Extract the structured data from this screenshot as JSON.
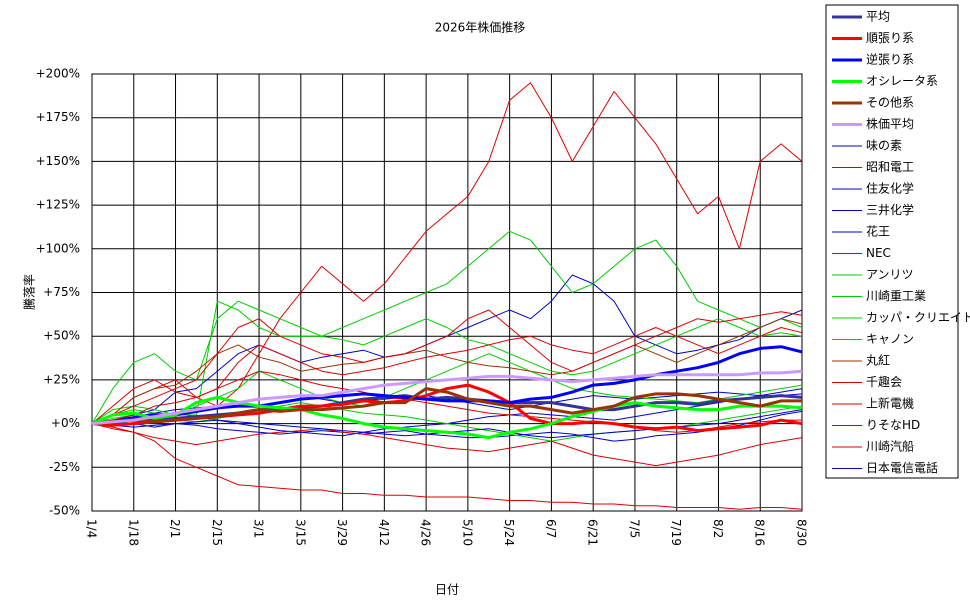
{
  "chart_data": {
    "type": "line",
    "title": "2026年株価推移",
    "x_label": "日付",
    "y_label": "騰落率",
    "categories": [
      "1/4",
      null,
      "1/18",
      null,
      "2/1",
      null,
      "2/15",
      null,
      "3/1",
      null,
      "3/15",
      null,
      "3/29",
      null,
      "4/12",
      null,
      "4/26",
      null,
      "5/10",
      null,
      "5/24",
      null,
      "6/7",
      null,
      "6/21",
      null,
      "7/5",
      null,
      "7/19",
      null,
      "8/2",
      null,
      "8/16",
      null,
      "8/30"
    ],
    "ylim": [
      -50,
      200
    ],
    "yticks": [
      {
        "value": -50,
        "label": "-50%"
      },
      {
        "value": -25,
        "label": "-25%"
      },
      {
        "value": 0,
        "label": "+0%"
      },
      {
        "value": 25,
        "label": "+25%"
      },
      {
        "value": 50,
        "label": "+50%"
      },
      {
        "value": 75,
        "label": "+75%"
      },
      {
        "value": 100,
        "label": "+100%"
      },
      {
        "value": 125,
        "label": "+125%"
      },
      {
        "value": 150,
        "label": "+150%"
      },
      {
        "value": 175,
        "label": "+175%"
      },
      {
        "value": 200,
        "label": "+200%"
      }
    ],
    "grid": true,
    "legend": "right",
    "series": [
      {
        "name": "平均",
        "color": "#333399",
        "line_width": 3,
        "values": [
          0,
          1,
          2,
          2,
          3,
          4,
          5,
          6,
          8,
          8,
          9,
          10,
          12,
          14,
          15,
          16,
          14,
          15,
          14,
          13,
          12,
          12,
          12,
          10,
          8,
          8,
          10,
          12,
          12,
          11,
          13,
          14,
          15,
          16,
          15
        ]
      },
      {
        "name": "順張り系",
        "color": "#ff0000",
        "line_width": 3,
        "values": [
          0,
          -1,
          0,
          1,
          2,
          3,
          4,
          5,
          6,
          8,
          10,
          10,
          11,
          13,
          12,
          13,
          16,
          20,
          22,
          18,
          12,
          3,
          0,
          0,
          1,
          0,
          -2,
          -3,
          -2,
          -4,
          -3,
          -2,
          -1,
          2,
          0
        ]
      },
      {
        "name": "逆張り系",
        "color": "#0000ff",
        "line_width": 3,
        "values": [
          0,
          1,
          3,
          5,
          5,
          7,
          9,
          10,
          10,
          12,
          14,
          15,
          16,
          17,
          16,
          15,
          14,
          13,
          13,
          13,
          12,
          14,
          15,
          18,
          22,
          23,
          25,
          28,
          30,
          32,
          35,
          40,
          43,
          44,
          41
        ]
      },
      {
        "name": "オシレータ系",
        "color": "#00ff00",
        "line_width": 3,
        "values": [
          0,
          5,
          6,
          3,
          5,
          12,
          15,
          12,
          10,
          9,
          8,
          5,
          3,
          0,
          -2,
          -3,
          -4,
          -5,
          -6,
          -8,
          -5,
          -3,
          0,
          4,
          7,
          10,
          12,
          10,
          9,
          8,
          8,
          10,
          10,
          10,
          9
        ]
      },
      {
        "name": "その他系",
        "color": "#993300",
        "line_width": 3,
        "values": [
          0,
          1,
          2,
          1,
          2,
          3,
          4,
          6,
          8,
          7,
          8,
          8,
          9,
          10,
          12,
          12,
          20,
          18,
          14,
          12,
          10,
          10,
          8,
          6,
          8,
          10,
          15,
          17,
          17,
          16,
          14,
          12,
          10,
          13,
          13
        ]
      },
      {
        "name": "株価平均",
        "color": "#cc99ff",
        "line_width": 3,
        "values": [
          0,
          1,
          2,
          4,
          6,
          8,
          10,
          12,
          14,
          15,
          16,
          16,
          18,
          20,
          22,
          23,
          24,
          25,
          26,
          27,
          27,
          26,
          25,
          24,
          25,
          26,
          27,
          28,
          28,
          28,
          28,
          28,
          29,
          29,
          30
        ]
      },
      {
        "name": "味の素",
        "color": "#0000cc",
        "line_width": 1,
        "values": [
          0,
          2,
          4,
          6,
          8,
          9,
          10,
          12,
          14,
          15,
          16,
          14,
          12,
          13,
          14,
          15,
          16,
          14,
          12,
          10,
          8,
          10,
          12,
          14,
          16,
          15,
          14,
          15,
          16,
          17,
          18,
          17,
          16,
          16,
          17
        ]
      },
      {
        "name": "昭和電工",
        "color": "#dd0000",
        "line_width": 1,
        "values": [
          0,
          5,
          15,
          20,
          25,
          15,
          10,
          20,
          40,
          60,
          75,
          90,
          80,
          70,
          80,
          95,
          110,
          120,
          130,
          150,
          185,
          195,
          175,
          150,
          170,
          190,
          175,
          160,
          140,
          120,
          130,
          100,
          150,
          160,
          150
        ]
      },
      {
        "name": "住友化学",
        "color": "#0000cc",
        "line_width": 1,
        "values": [
          0,
          2,
          5,
          8,
          18,
          20,
          30,
          40,
          45,
          40,
          35,
          38,
          40,
          42,
          38,
          40,
          45,
          50,
          55,
          60,
          65,
          60,
          70,
          85,
          80,
          70,
          50,
          45,
          40,
          42,
          45,
          48,
          55,
          60,
          65
        ]
      },
      {
        "name": "三井化学",
        "color": "#0000cc",
        "line_width": 1,
        "values": [
          0,
          1,
          0,
          -2,
          0,
          -1,
          -3,
          -4,
          -5,
          -6,
          -5,
          -4,
          -5,
          -6,
          -5,
          -4,
          -6,
          -7,
          -8,
          -8,
          -7,
          -6,
          -5,
          -6,
          -8,
          -10,
          -9,
          -7,
          -6,
          -5,
          -3,
          -1,
          2,
          5,
          7
        ]
      },
      {
        "name": "花王",
        "color": "#0000cc",
        "line_width": 1,
        "values": [
          0,
          1,
          3,
          5,
          6,
          4,
          2,
          0,
          -2,
          -4,
          -5,
          -6,
          -7,
          -5,
          -3,
          -2,
          -1,
          0,
          2,
          4,
          5,
          6,
          5,
          4,
          3,
          2,
          4,
          6,
          8,
          10,
          12,
          14,
          16,
          18,
          20
        ]
      },
      {
        "name": "NEC",
        "color": "#dd0000",
        "line_width": 1,
        "values": [
          0,
          -3,
          -5,
          -10,
          -20,
          -25,
          -30,
          -35,
          -36,
          -37,
          -38,
          -38,
          -40,
          -40,
          -41,
          -41,
          -42,
          -42,
          -42,
          -43,
          -44,
          -44,
          -45,
          -45,
          -46,
          -46,
          -47,
          -47,
          -48,
          -48,
          -48,
          -49,
          -48,
          -48,
          -49
        ]
      },
      {
        "name": "アンリツ",
        "color": "#00cc00",
        "line_width": 1,
        "values": [
          0,
          20,
          35,
          40,
          30,
          25,
          60,
          70,
          65,
          60,
          55,
          50,
          55,
          60,
          65,
          70,
          75,
          80,
          90,
          100,
          110,
          105,
          90,
          75,
          80,
          90,
          100,
          105,
          90,
          70,
          65,
          60,
          55,
          60,
          55
        ]
      },
      {
        "name": "川崎重工業",
        "color": "#00cc00",
        "line_width": 1,
        "values": [
          0,
          8,
          10,
          8,
          5,
          5,
          70,
          65,
          55,
          50,
          50,
          50,
          48,
          45,
          50,
          55,
          60,
          55,
          48,
          45,
          40,
          35,
          30,
          28,
          30,
          35,
          40,
          45,
          50,
          55,
          60,
          55,
          50,
          52,
          50
        ]
      },
      {
        "name": "カッパ・クリエイト",
        "color": "#00cc00",
        "line_width": 1,
        "values": [
          0,
          3,
          5,
          4,
          2,
          1,
          3,
          5,
          8,
          10,
          12,
          10,
          8,
          6,
          5,
          4,
          2,
          0,
          -2,
          -4,
          -6,
          -8,
          -10,
          -8,
          -6,
          -5,
          -4,
          -3,
          -2,
          0,
          2,
          4,
          6,
          8,
          10
        ]
      },
      {
        "name": "キャノン",
        "color": "#00cc00",
        "line_width": 1,
        "values": [
          0,
          5,
          8,
          6,
          4,
          10,
          15,
          20,
          30,
          25,
          20,
          15,
          12,
          10,
          15,
          20,
          25,
          30,
          35,
          40,
          35,
          30,
          25,
          20,
          18,
          16,
          15,
          14,
          13,
          12,
          14,
          16,
          18,
          20,
          22
        ]
      },
      {
        "name": "丸紅",
        "color": "#993300",
        "line_width": 1,
        "values": [
          0,
          5,
          15,
          20,
          22,
          30,
          40,
          45,
          38,
          35,
          30,
          32,
          34,
          35,
          38,
          40,
          42,
          38,
          35,
          33,
          32,
          30,
          28,
          30,
          35,
          40,
          45,
          40,
          35,
          40,
          45,
          50,
          55,
          60,
          57
        ]
      },
      {
        "name": "千趣会",
        "color": "#dd0000",
        "line_width": 1,
        "values": [
          0,
          10,
          20,
          25,
          18,
          15,
          20,
          35,
          45,
          40,
          35,
          30,
          28,
          30,
          32,
          35,
          38,
          40,
          42,
          45,
          48,
          50,
          45,
          42,
          40,
          45,
          50,
          55,
          50,
          45,
          40,
          45,
          50,
          55,
          52
        ]
      },
      {
        "name": "上新電機",
        "color": "#dd0000",
        "line_width": 1,
        "values": [
          0,
          2,
          5,
          10,
          12,
          15,
          20,
          25,
          30,
          28,
          25,
          22,
          20,
          18,
          15,
          14,
          12,
          10,
          8,
          6,
          5,
          4,
          3,
          2,
          1,
          0,
          -2,
          -4,
          -5,
          -4,
          -2,
          0,
          1,
          2,
          2
        ]
      },
      {
        "name": "りそなHD",
        "color": "#dd0000",
        "line_width": 1,
        "values": [
          0,
          5,
          10,
          15,
          20,
          25,
          40,
          55,
          60,
          50,
          45,
          40,
          38,
          35,
          38,
          40,
          45,
          50,
          60,
          65,
          55,
          45,
          35,
          30,
          35,
          40,
          45,
          50,
          55,
          60,
          58,
          60,
          62,
          64,
          62
        ]
      },
      {
        "name": "川崎汽船",
        "color": "#dd0000",
        "line_width": 1,
        "values": [
          0,
          -2,
          -5,
          -8,
          -10,
          -12,
          -10,
          -8,
          -6,
          -5,
          -4,
          -3,
          -5,
          -6,
          -8,
          -10,
          -12,
          -14,
          -15,
          -16,
          -14,
          -12,
          -10,
          -14,
          -18,
          -20,
          -22,
          -24,
          -22,
          -20,
          -18,
          -15,
          -12,
          -10,
          -8
        ]
      },
      {
        "name": "日本電信電話",
        "color": "#0000cc",
        "line_width": 1,
        "values": [
          0,
          -1,
          -2,
          -1,
          0,
          1,
          2,
          1,
          0,
          -1,
          -2,
          -3,
          -4,
          -5,
          -6,
          -7,
          -6,
          -5,
          -4,
          -3,
          -5,
          -7,
          -8,
          -7,
          -6,
          -5,
          -4,
          -3,
          -2,
          -1,
          0,
          2,
          4,
          6,
          8
        ]
      }
    ]
  }
}
